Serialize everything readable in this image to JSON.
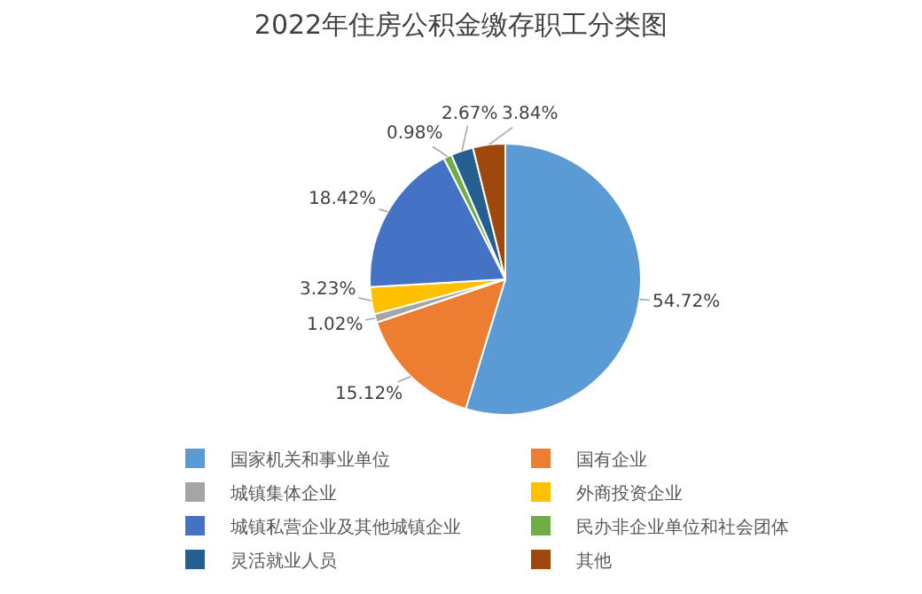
{
  "chart_data": {
    "type": "pie",
    "title": "2022年住房公积金缴存职工分类图",
    "categories": [
      "国家机关和事业单位",
      "国有企业",
      "城镇集体企业",
      "外商投资企业",
      "城镇私营企业及其他城镇企业",
      "民办非企业单位和社会团体",
      "灵活就业人员",
      "其他"
    ],
    "values": [
      54.72,
      15.12,
      1.02,
      3.23,
      18.42,
      0.98,
      2.67,
      3.84
    ],
    "value_labels": [
      "54.72%",
      "15.12%",
      "1.02%",
      "3.23%",
      "18.42%",
      "0.98%",
      "2.67%",
      "3.84%"
    ],
    "colors": [
      "#5b9bd5",
      "#ed7d31",
      "#a5a5a5",
      "#ffc000",
      "#4472c4",
      "#70ad47",
      "#255e91",
      "#9e480e"
    ],
    "legend": "bottom"
  }
}
